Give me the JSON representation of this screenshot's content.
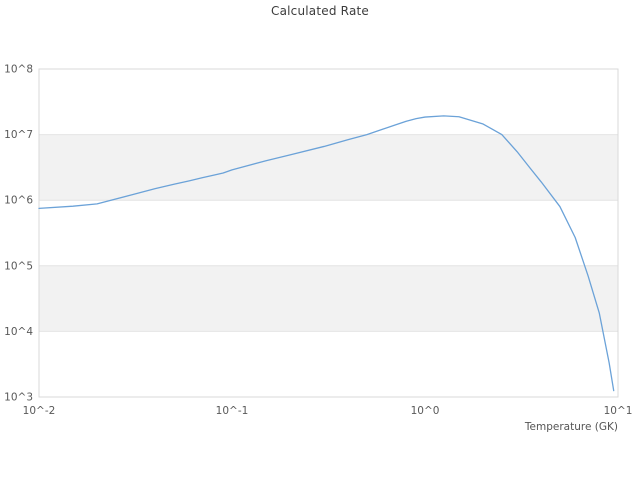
{
  "chart_data": {
    "type": "line",
    "title": "Calculated Rate",
    "xlabel": "Temperature (GK)",
    "ylabel": "",
    "xscale": "log",
    "yscale": "log",
    "xlim": [
      0.01,
      10
    ],
    "ylim": [
      1000,
      100000000
    ],
    "grid": "horizontal-decade-lines-no-vertical",
    "legend": "none",
    "xticks": [
      {
        "value": 0.01,
        "label": "10^-2"
      },
      {
        "value": 0.1,
        "label": "10^-1"
      },
      {
        "value": 1,
        "label": "10^0"
      },
      {
        "value": 10,
        "label": "10^1"
      }
    ],
    "yticks": [
      {
        "value": 100000000,
        "label": "10^8"
      },
      {
        "value": 10000000,
        "label": "10^7"
      },
      {
        "value": 1000000,
        "label": "10^6"
      },
      {
        "value": 100000,
        "label": "10^5"
      },
      {
        "value": 10000,
        "label": "10^4"
      },
      {
        "value": 1000,
        "label": "10^3"
      }
    ],
    "shaded_bands": [
      {
        "from": 10000000,
        "to": 1000000
      },
      {
        "from": 100000,
        "to": 10000
      }
    ],
    "series": [
      {
        "name": "calculated-rate",
        "x": [
          0.01,
          0.015,
          0.02,
          0.03,
          0.04,
          0.05,
          0.06,
          0.07,
          0.08,
          0.09,
          0.1,
          0.15,
          0.2,
          0.3,
          0.4,
          0.5,
          0.6,
          0.7,
          0.8,
          0.9,
          1.0,
          1.25,
          1.5,
          2.0,
          2.5,
          3.0,
          3.5,
          4.0,
          5.0,
          6.0,
          7.0,
          8.0,
          9.0,
          9.5
        ],
        "y": [
          750000,
          810000,
          880000,
          1200000,
          1500000,
          1750000,
          1970000,
          2200000,
          2400000,
          2600000,
          2900000,
          4000000,
          4900000,
          6600000,
          8400000,
          10000000,
          12000000,
          14000000,
          16000000,
          17500000,
          18500000,
          19300000,
          18700000,
          14500000,
          10000000,
          5500000,
          3100000,
          1900000,
          800000,
          270000,
          70000,
          19000,
          3300,
          1250
        ]
      }
    ],
    "colors": {
      "line": "#6ba2d8",
      "band": "#f2f2f2",
      "grid": "#e4e4e4",
      "frame": "#d9d9d9",
      "tick_text": "#595959",
      "title_text": "#3c3c3c",
      "axis_title_text": "#555555",
      "background": "#ffffff"
    }
  }
}
